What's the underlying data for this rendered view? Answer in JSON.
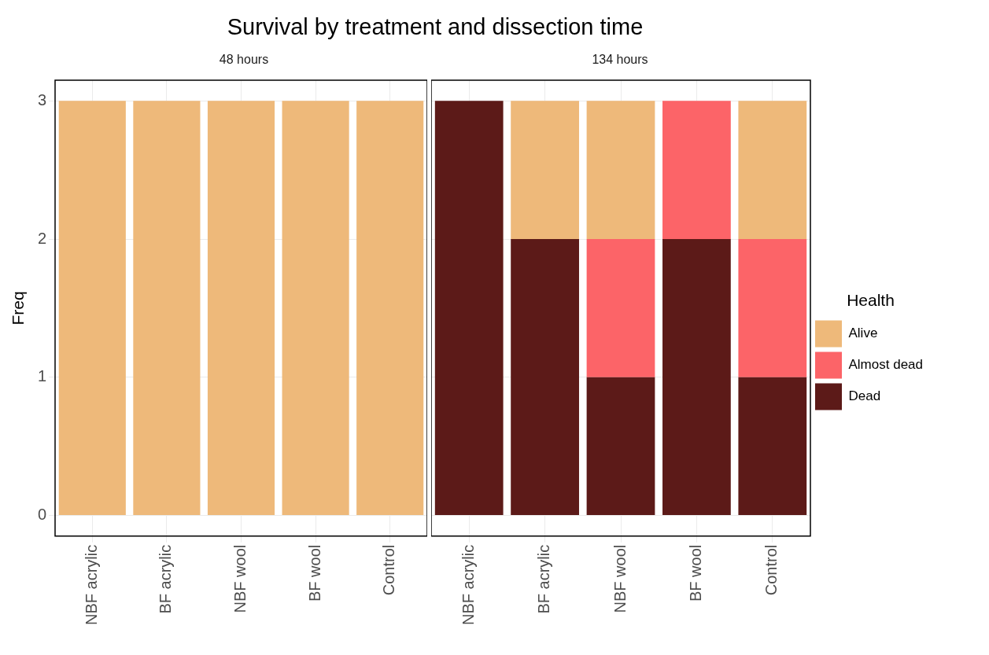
{
  "chart_data": [
    {
      "type": "bar",
      "title": "Survival by treatment and dissection time",
      "subtitle": "48 hours",
      "ylabel": "Freq",
      "categories": [
        "NBF acrylic",
        "BF acrylic",
        "NBF wool",
        "BF wool",
        "Control"
      ],
      "stacked": true,
      "ylim": [
        -0.15,
        3.15
      ],
      "yticks": [
        0,
        1,
        2,
        3
      ],
      "grid": true,
      "legend": false,
      "series": [
        {
          "color": "#eeb97a",
          "values": [
            3,
            3,
            3,
            3,
            3
          ]
        }
      ]
    },
    {
      "type": "bar",
      "subtitle": "134 hours",
      "categories": [
        "NBF acrylic",
        "BF acrylic",
        "NBF wool",
        "BF wool",
        "Control"
      ],
      "stacked": true,
      "ylim": [
        -0.15,
        3.15
      ],
      "yticks": [
        0,
        1,
        2,
        3
      ],
      "grid": true,
      "legend": "right",
      "legend_title": "Health",
      "tick_labels": "x",
      "series": [
        {
          "name": "Dead",
          "color": "#5c1a18",
          "values": [
            3,
            2,
            1,
            2,
            1
          ]
        },
        {
          "name": "Almost dead",
          "color": "#fc6468",
          "values": [
            0,
            0,
            1,
            1,
            1
          ]
        },
        {
          "name": "Alive",
          "color": "#eeb97a",
          "values": [
            0,
            1,
            1,
            0,
            1
          ]
        }
      ]
    }
  ]
}
